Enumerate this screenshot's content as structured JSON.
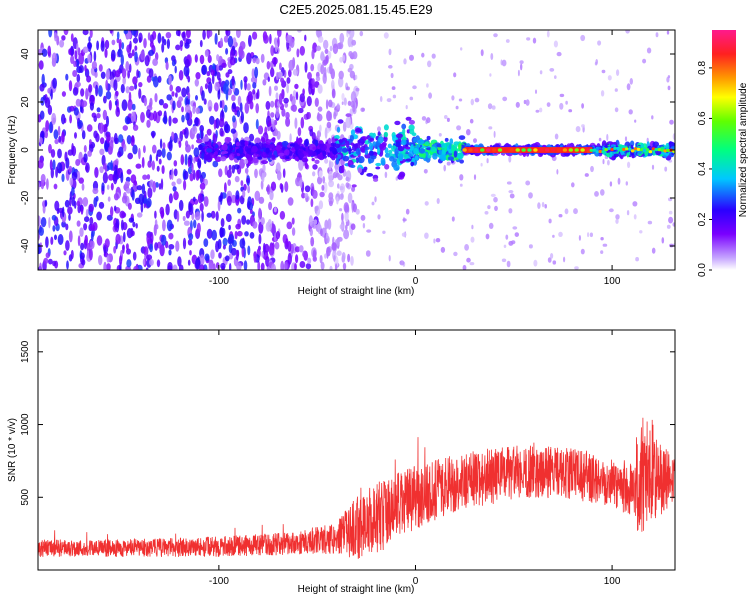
{
  "title": "C2E5.2025.081.15.45.E29",
  "colors": {
    "snr_line": "#f03030",
    "spectrogram_low": "#7a00ff",
    "frame": "#000000"
  },
  "chart_data": [
    {
      "type": "heatmap",
      "title": "C2E5.2025.081.15.45.E29",
      "xlabel": "Height of straight line (km)",
      "ylabel": "Frequency (Hz)",
      "xlim": [
        -192,
        132
      ],
      "ylim": [
        -50,
        50
      ],
      "x_ticks": [
        -100,
        0,
        100
      ],
      "x_tick_labels": [
        "-100",
        "0",
        "100"
      ],
      "y_ticks": [
        -40,
        -20,
        0,
        20,
        40
      ],
      "y_tick_labels": [
        "-40",
        "-20",
        "0",
        "20",
        "40"
      ],
      "colorbar": {
        "label": "Normalized spectral amplitude",
        "range": [
          0.0,
          0.95
        ],
        "ticks": [
          0.0,
          0.2,
          0.4,
          0.6,
          0.8
        ],
        "tick_labels": [
          "0.0",
          "0.2",
          "0.4",
          "0.6",
          "0.8"
        ],
        "colormap": "rainbow (purple-blue-cyan-green-yellow-orange-red-magenta)"
      },
      "features": {
        "broadband_noise_x_range": [
          -192,
          -40
        ],
        "signal_line_frequency": 0,
        "strong_signal_x_range": [
          25,
          90
        ],
        "strong_signal_amplitude": 0.85
      },
      "grid": false
    },
    {
      "type": "line",
      "xlabel": "Height of straight line (km)",
      "ylabel": "SNR (10 * v/v)",
      "xlim": [
        -192,
        132
      ],
      "ylim": [
        0,
        1650
      ],
      "x_ticks": [
        -100,
        0,
        100
      ],
      "x_tick_labels": [
        "-100",
        "0",
        "100"
      ],
      "y_ticks": [
        500,
        1000,
        1500
      ],
      "y_tick_labels": [
        "500",
        "1000",
        "1500"
      ],
      "envelope_x": [
        -192,
        -150,
        -100,
        -60,
        -40,
        -30,
        -20,
        -10,
        0,
        20,
        40,
        60,
        80,
        100,
        110,
        115,
        120,
        125,
        132
      ],
      "envelope_mean": [
        150,
        150,
        160,
        185,
        220,
        290,
        360,
        420,
        500,
        600,
        650,
        680,
        660,
        600,
        560,
        620,
        700,
        600,
        620
      ],
      "envelope_spread": [
        60,
        60,
        70,
        80,
        110,
        220,
        250,
        240,
        220,
        200,
        200,
        180,
        180,
        160,
        220,
        450,
        350,
        250,
        200
      ],
      "grid": false
    }
  ]
}
